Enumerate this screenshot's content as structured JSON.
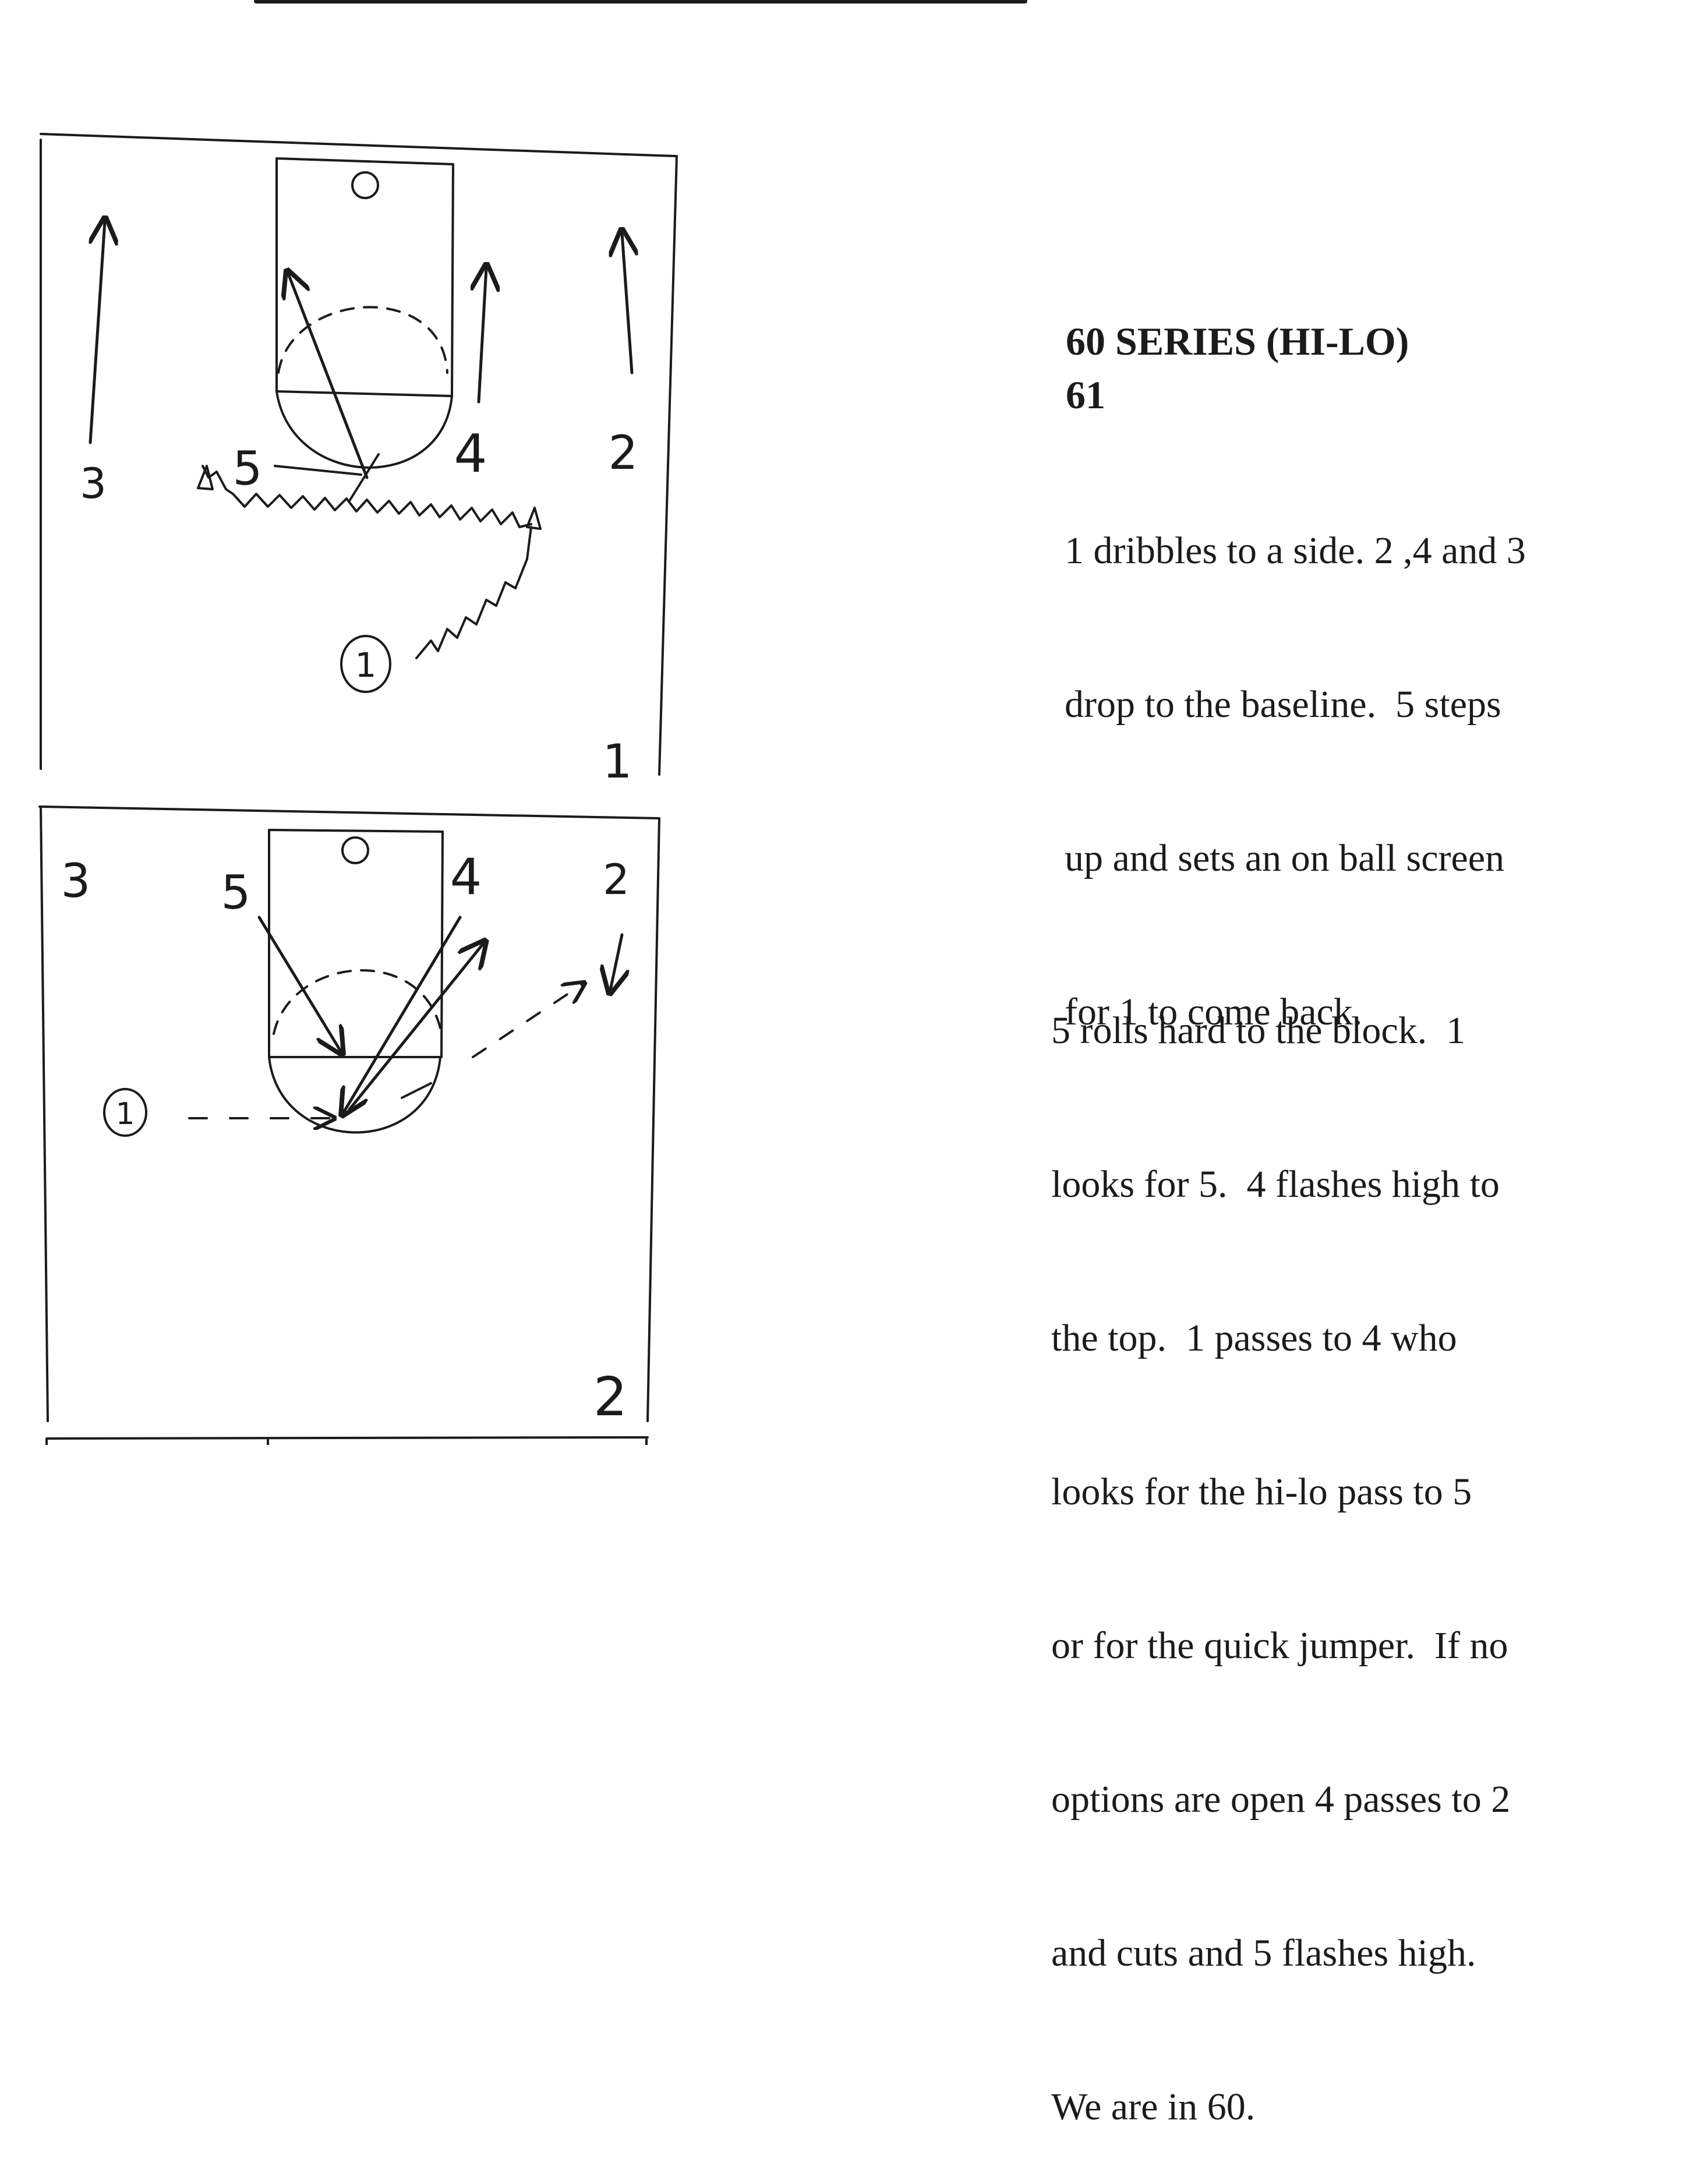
{
  "series_title": "60 SERIES (HI-LO)",
  "play_number": "61",
  "step1_lines": [
    "1 dribbles to a side. 2 ,4 and 3",
    "drop to the baseline.  5 steps",
    "up and sets an on ball screen",
    "for 1 to come back."
  ],
  "step2_lines": [
    "5 rolls hard to the block.  1",
    "looks for 5.  4 flashes high to",
    "the top.  1 passes to 4 who",
    "looks for the hi-lo pass to 5",
    "or for the quick jumper.  If no",
    "options are open 4 passes to 2",
    "and cuts and 5 flashes high.",
    "We are in 60."
  ],
  "diagram1": {
    "frame_number": "1",
    "players": [
      "3",
      "5",
      "4",
      "2"
    ],
    "ball_handler": "1"
  },
  "diagram2": {
    "frame_number": "2",
    "players": [
      "3",
      "5",
      "4",
      "2"
    ],
    "ball_handler": "1"
  }
}
